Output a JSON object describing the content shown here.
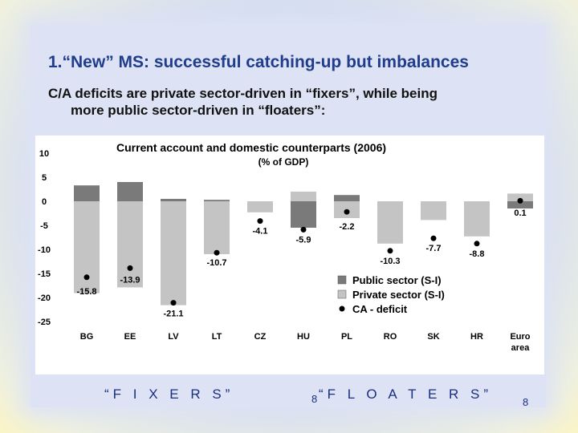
{
  "slide": {
    "title": "1.“New” MS: successful catching-up but imbalances",
    "subtitle_line1": "C/A deficits are private sector-driven in “fixers”, while being",
    "subtitle_line2": "more public sector-driven in “floaters”:",
    "fixers_label": "“F I X E R S”",
    "floaters_label": "“F L O A T E R S”",
    "page_number_1": "8",
    "page_number_2": "8"
  },
  "chart_data": {
    "type": "bar",
    "title": "Current account and domestic counterparts (2006)",
    "subtitle": "(% of GDP)",
    "categories": [
      "BG",
      "EE",
      "LV",
      "LT",
      "CZ",
      "HU",
      "PL",
      "RO",
      "SK",
      "HR",
      "Euro area"
    ],
    "category_labels": [
      [
        "BG"
      ],
      [
        "EE"
      ],
      [
        "LV"
      ],
      [
        "LT"
      ],
      [
        "CZ"
      ],
      [
        "HU"
      ],
      [
        "PL"
      ],
      [
        "RO"
      ],
      [
        "SK"
      ],
      [
        "HR"
      ],
      [
        "Euro",
        "area"
      ]
    ],
    "ylim": [
      -25,
      10
    ],
    "yticks": [
      10,
      5,
      0,
      -5,
      -10,
      -15,
      -20,
      -25
    ],
    "series": [
      {
        "name": "Public sector (S-I)",
        "kind": "bar",
        "color": "#7a7a7a",
        "values": [
          3.3,
          4.0,
          0.5,
          0.3,
          -1.8,
          -5.5,
          1.3,
          -1.5,
          -3.8,
          -1.5,
          -1.5
        ]
      },
      {
        "name": "Private sector (S-I)",
        "kind": "bar",
        "color": "#c4c4c4",
        "values": [
          -19.1,
          -17.9,
          -21.6,
          -11.0,
          -2.3,
          2.0,
          -3.5,
          -8.8,
          -3.9,
          -7.3,
          1.6
        ]
      },
      {
        "name": "CA - deficit",
        "kind": "point",
        "color": "#000000",
        "values": [
          -15.8,
          -13.9,
          -21.1,
          -10.7,
          -4.1,
          -5.9,
          -2.2,
          -10.3,
          -7.7,
          -8.8,
          0.1
        ]
      }
    ],
    "data_labels": [
      "-15.8",
      "-13.9",
      "-21.1",
      "-10.7",
      "-4.1",
      "-5.9",
      "-2.2",
      "-10.3",
      "-7.7",
      "-8.8",
      "0.1"
    ],
    "legend_position": "bottom-right",
    "grid": false
  }
}
